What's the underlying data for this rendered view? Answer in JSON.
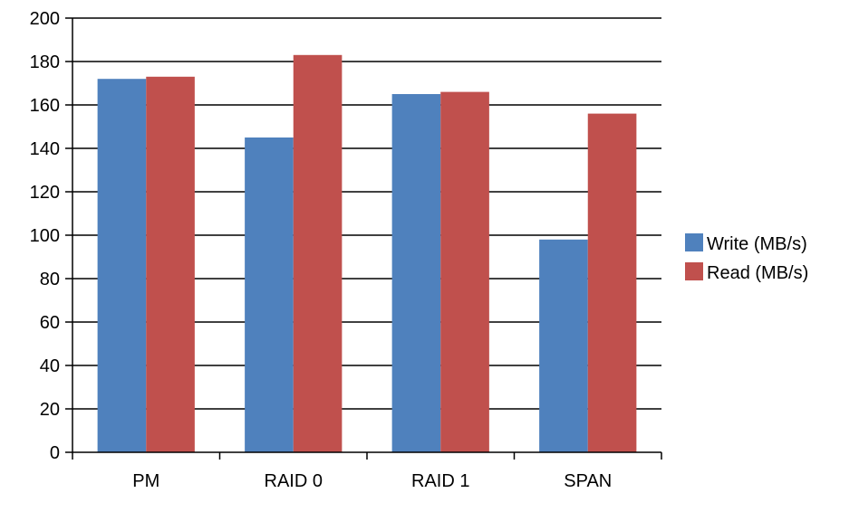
{
  "chart_data": {
    "type": "bar",
    "categories": [
      "PM",
      "RAID 0",
      "RAID 1",
      "SPAN"
    ],
    "series": [
      {
        "name": "Write (MB/s)",
        "values": [
          172,
          145,
          165,
          98
        ],
        "color": "#4f81bd"
      },
      {
        "name": "Read (MB/s)",
        "values": [
          173,
          183,
          166,
          156
        ],
        "color": "#c0504d"
      }
    ],
    "title": "",
    "xlabel": "",
    "ylabel": "",
    "ylim": [
      0,
      200
    ],
    "yticks": [
      0,
      20,
      40,
      60,
      80,
      100,
      120,
      140,
      160,
      180,
      200
    ],
    "grid": true,
    "legend_position": "right"
  }
}
